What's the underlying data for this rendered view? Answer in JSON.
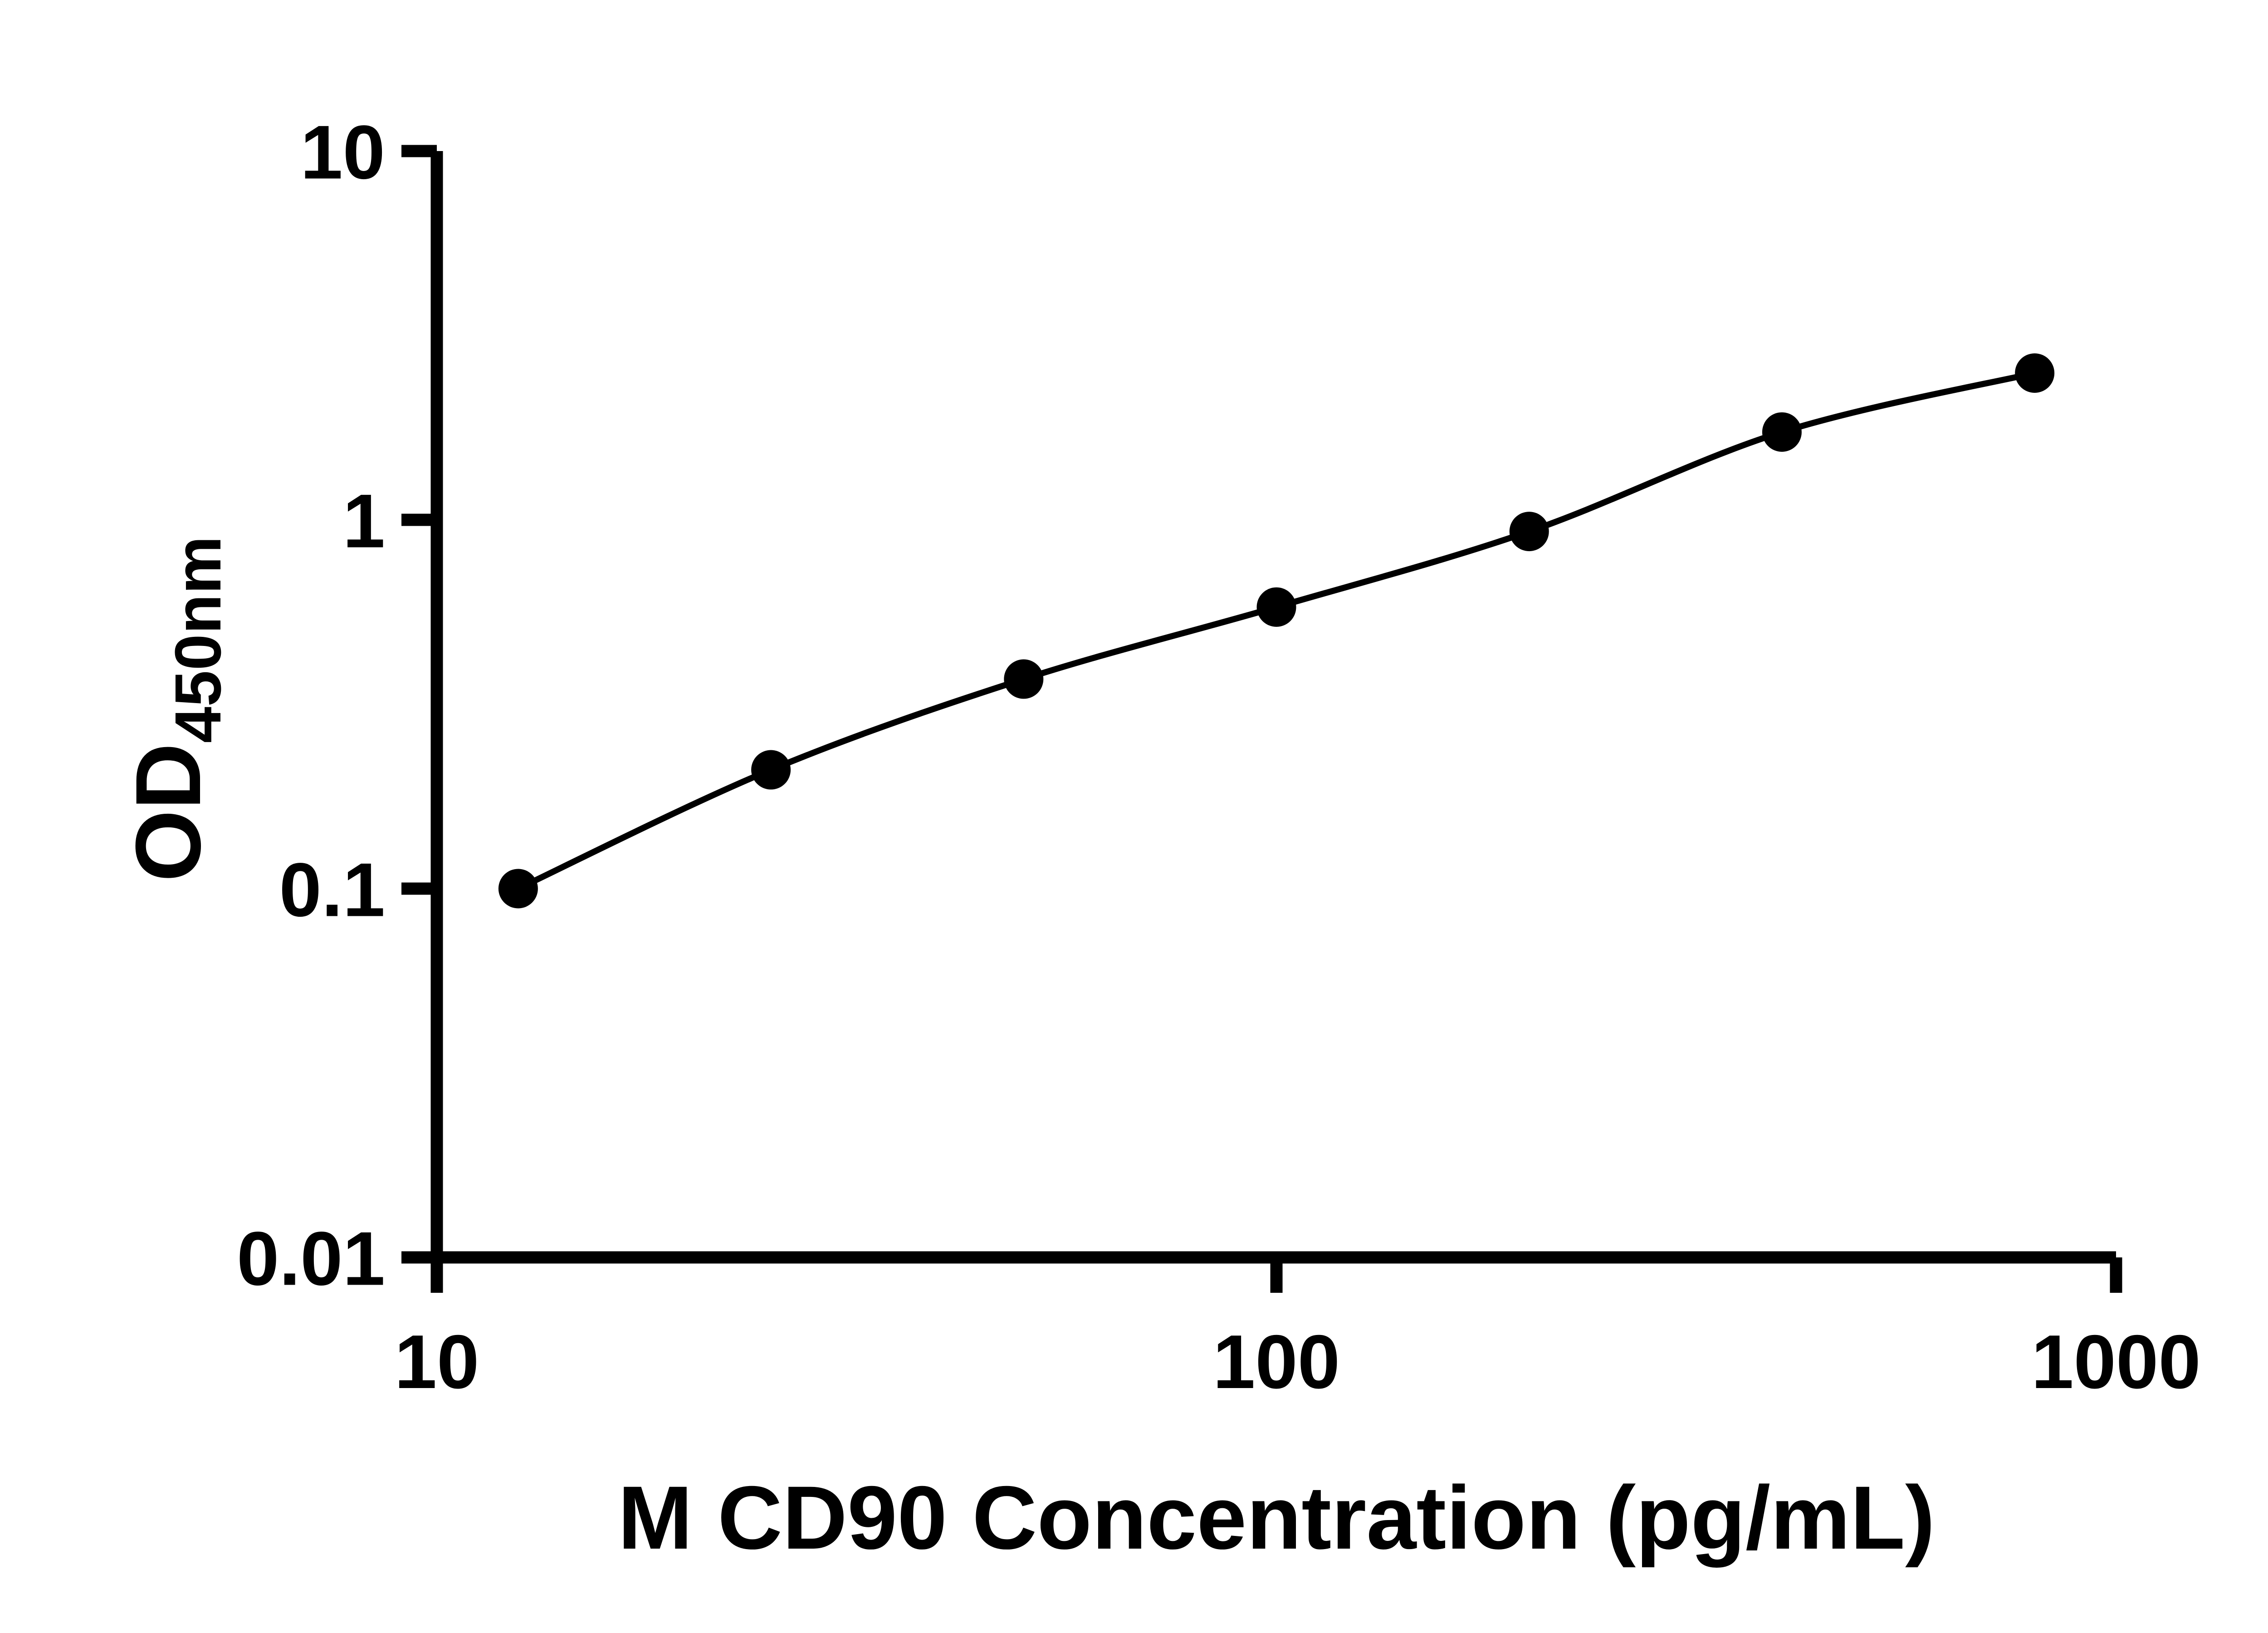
{
  "figure": {
    "background_color": "#ffffff",
    "axis_color": "#000000",
    "marker_color": "#000000",
    "line_color": "#000000"
  },
  "chart_data": {
    "type": "scatter",
    "subtype": "standard-curve-with-fit-line",
    "title": "",
    "xlabel": "M CD90 Concentration (pg/mL)",
    "ylabel": "OD",
    "ylabel_subscript": "450nm",
    "x_scale": "log",
    "y_scale": "log",
    "xlim": [
      10,
      1000
    ],
    "ylim": [
      0.01,
      10
    ],
    "x_ticks": [
      10,
      100,
      1000
    ],
    "x_tick_labels": [
      "10",
      "100",
      "1000"
    ],
    "y_ticks": [
      10,
      1,
      0.1,
      0.01
    ],
    "y_tick_labels": [
      "10",
      "1",
      "0.1",
      "0.01"
    ],
    "grid": false,
    "legend": false,
    "x": [
      12.5,
      25,
      50,
      100,
      200,
      400,
      800
    ],
    "y": [
      0.1,
      0.21,
      0.37,
      0.58,
      0.93,
      1.73,
      2.5
    ]
  }
}
